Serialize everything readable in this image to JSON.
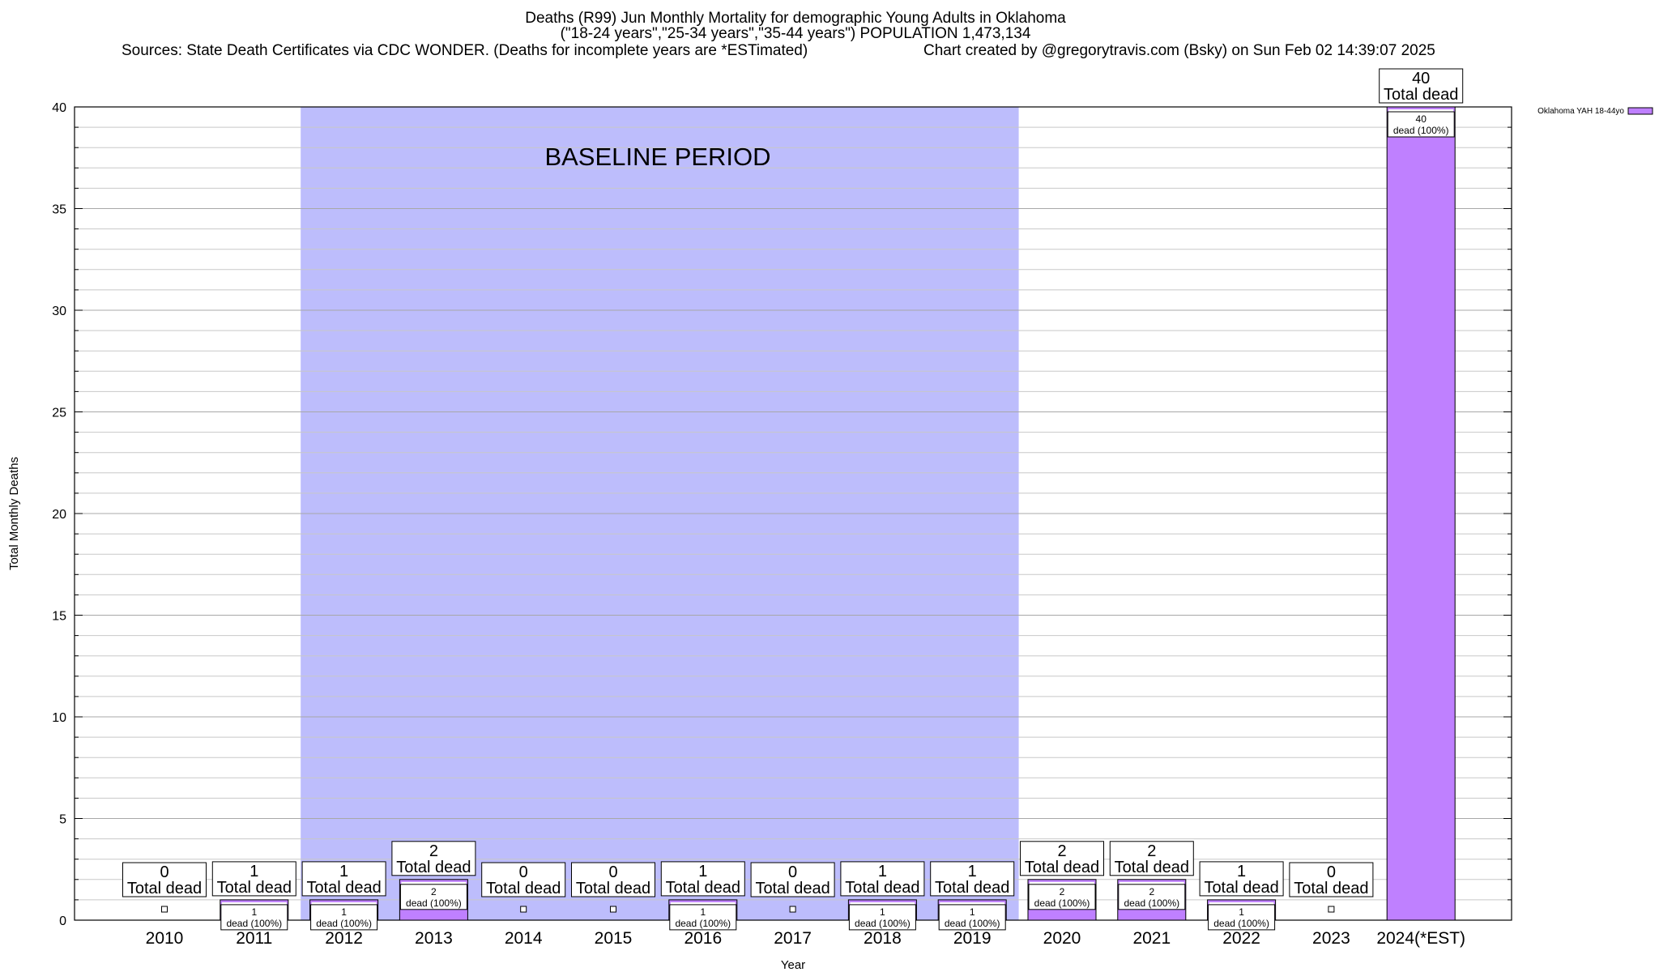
{
  "header": {
    "title_line1": "Deaths (R99) Jun Monthly Mortality for demographic Young Adults in Oklahoma",
    "title_line2": "(\"18-24 years\",\"25-34 years\",\"35-44 years\") POPULATION 1,473,134",
    "sources": "Sources: State Death Certificates via CDC WONDER. (Deaths for incomplete years are *ESTimated)",
    "credit": "Chart created by @gregorytravis.com (Bsky) on Sun Feb 02 14:39:07 2025"
  },
  "chart_data": {
    "type": "bar",
    "ylabel": "Total Monthly Deaths",
    "xlabel": "Year",
    "ylim": [
      0,
      40
    ],
    "y_ticks": [
      0,
      5,
      10,
      15,
      20,
      25,
      30,
      35,
      40
    ],
    "grid": true,
    "categories": [
      "2010",
      "2011",
      "2012",
      "2013",
      "2014",
      "2015",
      "2016",
      "2017",
      "2018",
      "2019",
      "2020",
      "2021",
      "2022",
      "2023",
      "2024(*EST)"
    ],
    "series": [
      {
        "name": "Oklahoma YAH 18-44yo",
        "color": "#bf80ff",
        "values": [
          0,
          1,
          1,
          2,
          0,
          0,
          1,
          0,
          1,
          1,
          2,
          2,
          1,
          0,
          40
        ]
      }
    ],
    "total_label_suffix": "Total dead",
    "inner_label_suffix": "dead (100%)",
    "baseline": {
      "label": "BASELINE PERIOD",
      "from": "2012",
      "to": "2019",
      "color": "#bdbdfc"
    },
    "legend_position": "top-right"
  }
}
